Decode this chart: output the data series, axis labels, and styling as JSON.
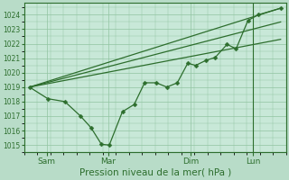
{
  "background_color": "#b8dcc8",
  "plot_bg_color": "#c8e8d8",
  "grid_color": "#90c4a0",
  "line_color": "#2d6e2d",
  "xlabel": "Pression niveau de la mer( hPa )",
  "ylim": [
    1014.5,
    1024.8
  ],
  "yticks": [
    1015,
    1016,
    1017,
    1018,
    1019,
    1020,
    1021,
    1022,
    1023,
    1024
  ],
  "xlim": [
    0,
    1
  ],
  "xtick_labels": [
    "Sam",
    "Mar",
    "Dim",
    "Lun"
  ],
  "xtick_positions": [
    0.085,
    0.32,
    0.635,
    0.875
  ],
  "series1_x": [
    0.02,
    0.09,
    0.155,
    0.215,
    0.255,
    0.295,
    0.325,
    0.375,
    0.42,
    0.46,
    0.505,
    0.545,
    0.585,
    0.625,
    0.655,
    0.695,
    0.73,
    0.775,
    0.81,
    0.855,
    0.895,
    0.98
  ],
  "series1_y": [
    1019.0,
    1018.2,
    1018.0,
    1017.0,
    1016.2,
    1015.05,
    1015.0,
    1017.3,
    1017.8,
    1019.3,
    1019.3,
    1019.0,
    1019.3,
    1020.65,
    1020.5,
    1020.85,
    1021.05,
    1021.95,
    1021.65,
    1023.6,
    1024.0,
    1024.45
  ],
  "trend_lines": [
    {
      "x": [
        0.02,
        0.98
      ],
      "y": [
        1019.0,
        1024.45
      ]
    },
    {
      "x": [
        0.02,
        0.98
      ],
      "y": [
        1019.0,
        1023.5
      ]
    },
    {
      "x": [
        0.02,
        0.98
      ],
      "y": [
        1019.0,
        1022.3
      ]
    }
  ],
  "vline_x": 0.875,
  "marker_size": 2.5,
  "linewidth": 0.9
}
